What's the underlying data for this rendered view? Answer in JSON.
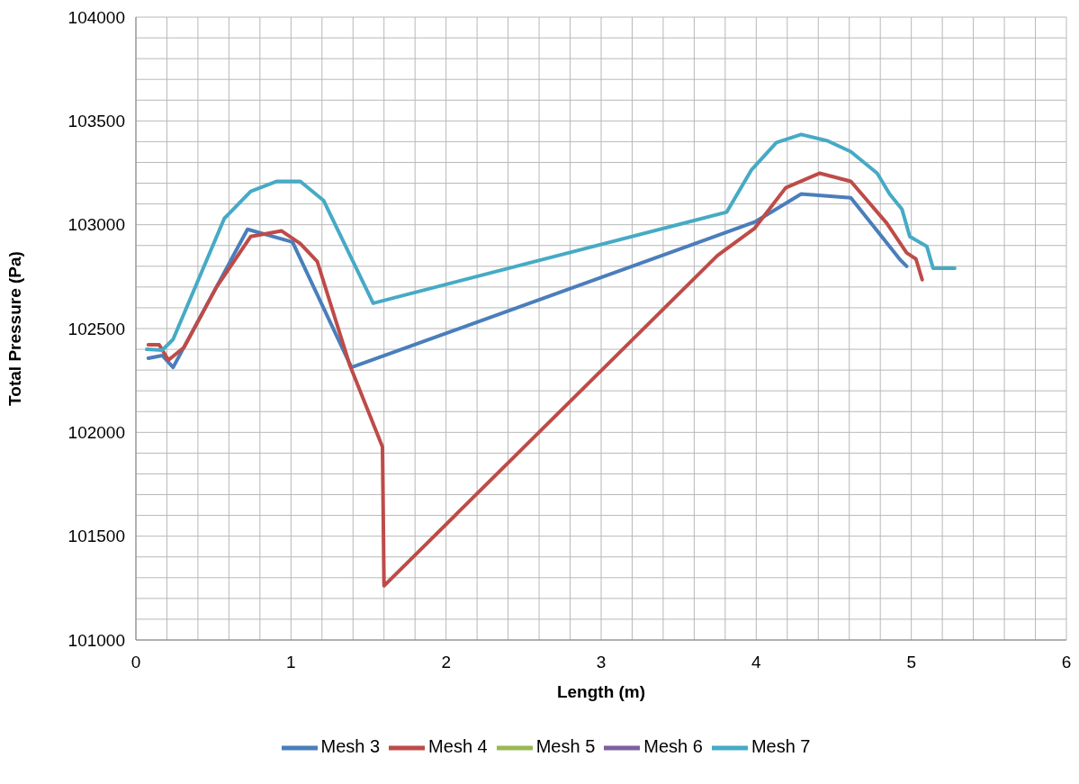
{
  "chart_data": {
    "type": "line",
    "xlabel": "Length (m)",
    "ylabel": "Total Pressure (Pa)",
    "xlim": [
      0,
      6
    ],
    "xticks": [
      0,
      {
        "value": 0.2,
        "label": null
      },
      {
        "value": 0.4,
        "label": null
      },
      {
        "value": 0.6,
        "label": null
      },
      {
        "value": 0.8,
        "label": null
      },
      1,
      {
        "value": 1.2,
        "label": null
      },
      {
        "value": 1.4,
        "label": null
      },
      {
        "value": 1.6,
        "label": null
      },
      {
        "value": 1.8,
        "label": null
      },
      2,
      {
        "value": 2.2,
        "label": null
      },
      {
        "value": 2.4,
        "label": null
      },
      {
        "value": 2.6,
        "label": null
      },
      {
        "value": 2.8,
        "label": null
      },
      3,
      {
        "value": 3.2,
        "label": null
      },
      {
        "value": 3.4,
        "label": null
      },
      {
        "value": 3.6,
        "label": null
      },
      {
        "value": 3.8,
        "label": null
      },
      4,
      {
        "value": 4.2,
        "label": null
      },
      {
        "value": 4.4,
        "label": null
      },
      {
        "value": 4.6,
        "label": null
      },
      {
        "value": 4.8,
        "label": null
      },
      5,
      {
        "value": 5.2,
        "label": null
      },
      {
        "value": 5.4,
        "label": null
      },
      {
        "value": 5.6,
        "label": null
      },
      {
        "value": 5.8,
        "label": null
      },
      6
    ],
    "ylim": [
      101000,
      104000
    ],
    "yticks": [
      101000,
      {
        "value": 101100,
        "label": null
      },
      {
        "value": 101200,
        "label": null
      },
      {
        "value": 101300,
        "label": null
      },
      {
        "value": 101400,
        "label": null
      },
      101500,
      {
        "value": 101600,
        "label": null
      },
      {
        "value": 101700,
        "label": null
      },
      {
        "value": 101800,
        "label": null
      },
      {
        "value": 101900,
        "label": null
      },
      102000,
      {
        "value": 102100,
        "label": null
      },
      {
        "value": 102200,
        "label": null
      },
      {
        "value": 102300,
        "label": null
      },
      {
        "value": 102400,
        "label": null
      },
      102500,
      {
        "value": 102600,
        "label": null
      },
      {
        "value": 102700,
        "label": null
      },
      {
        "value": 102800,
        "label": null
      },
      {
        "value": 102900,
        "label": null
      },
      103000,
      {
        "value": 103100,
        "label": null
      },
      {
        "value": 103200,
        "label": null
      },
      {
        "value": 103300,
        "label": null
      },
      {
        "value": 103400,
        "label": null
      },
      103500,
      {
        "value": 103600,
        "label": null
      },
      {
        "value": 103700,
        "label": null
      },
      {
        "value": 103800,
        "label": null
      },
      {
        "value": 103900,
        "label": null
      },
      104000
    ],
    "grid": true,
    "legend": "bottom",
    "marker": "none",
    "line_style": "solid",
    "series": [
      {
        "name": "Mesh 3",
        "color": "#4a7ebb",
        "x": [
          0.08,
          0.17,
          0.24,
          0.72,
          1.01,
          1.39,
          3.99,
          4.29,
          4.61,
          4.93,
          4.97
        ],
        "values": [
          102357,
          102370,
          102313,
          102978,
          102917,
          102313,
          103013,
          103148,
          103130,
          102830,
          102800
        ]
      },
      {
        "name": "Mesh 4",
        "color": "#be4b48",
        "x": [
          0.08,
          0.15,
          0.21,
          0.31,
          0.52,
          0.74,
          0.94,
          1.06,
          1.17,
          1.38,
          1.59,
          1.6,
          3.75,
          3.99,
          4.19,
          4.41,
          4.61,
          4.84,
          4.97,
          5.03,
          5.07
        ],
        "values": [
          102422,
          102422,
          102348,
          102409,
          102700,
          102943,
          102970,
          102909,
          102822,
          102322,
          101930,
          101261,
          102852,
          102983,
          103178,
          103248,
          103209,
          103009,
          102865,
          102835,
          102735
        ]
      },
      {
        "name": "Mesh 5",
        "color": "#98b954"
      },
      {
        "name": "Mesh 6",
        "color": "#7d60a0"
      },
      {
        "name": "Mesh 7",
        "color": "#46aac5",
        "x": [
          0.07,
          0.17,
          0.24,
          0.57,
          0.74,
          0.91,
          1.06,
          1.21,
          1.53,
          3.81,
          3.97,
          4.13,
          4.29,
          4.46,
          4.61,
          4.78,
          4.86,
          4.94,
          4.99,
          5.1,
          5.14,
          5.28
        ],
        "values": [
          102400,
          102396,
          102448,
          103030,
          103161,
          103209,
          103209,
          103117,
          102622,
          103061,
          103265,
          103396,
          103435,
          103404,
          103352,
          103248,
          103148,
          103074,
          102943,
          102896,
          102791,
          102791
        ]
      }
    ]
  }
}
